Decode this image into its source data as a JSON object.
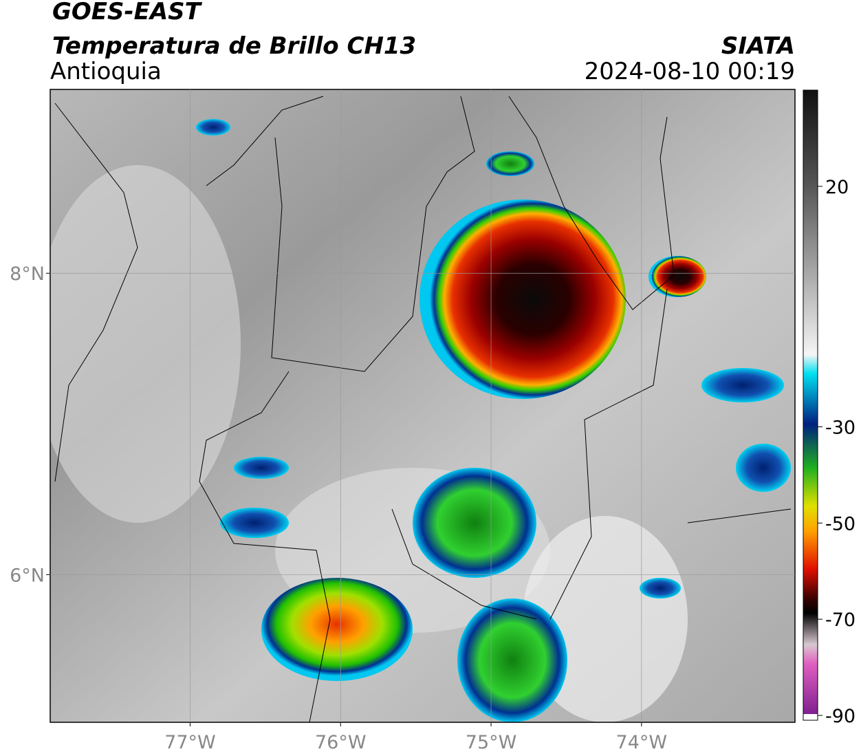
{
  "header": {
    "satellite": "GOES-EAST",
    "product": "Temperatura de Brillo CH13",
    "region": "Antioquia",
    "source": "SIATA",
    "datetime": "2024-08-10 00:19"
  },
  "map": {
    "xlim": [
      -77.93,
      -72.98
    ],
    "ylim": [
      5.02,
      9.22
    ],
    "xticks": [
      {
        "value": -77,
        "label": "77°W"
      },
      {
        "value": -76,
        "label": "76°W"
      },
      {
        "value": -75,
        "label": "75°W"
      },
      {
        "value": -74,
        "label": "74°W"
      }
    ],
    "yticks": [
      {
        "value": 6,
        "label": "6°N"
      },
      {
        "value": 8,
        "label": "8°N"
      }
    ],
    "grid": true
  },
  "colorbar": {
    "lim": [
      -91,
      40
    ],
    "ticks": [
      20,
      -30,
      -50,
      -70,
      -90
    ]
  }
}
